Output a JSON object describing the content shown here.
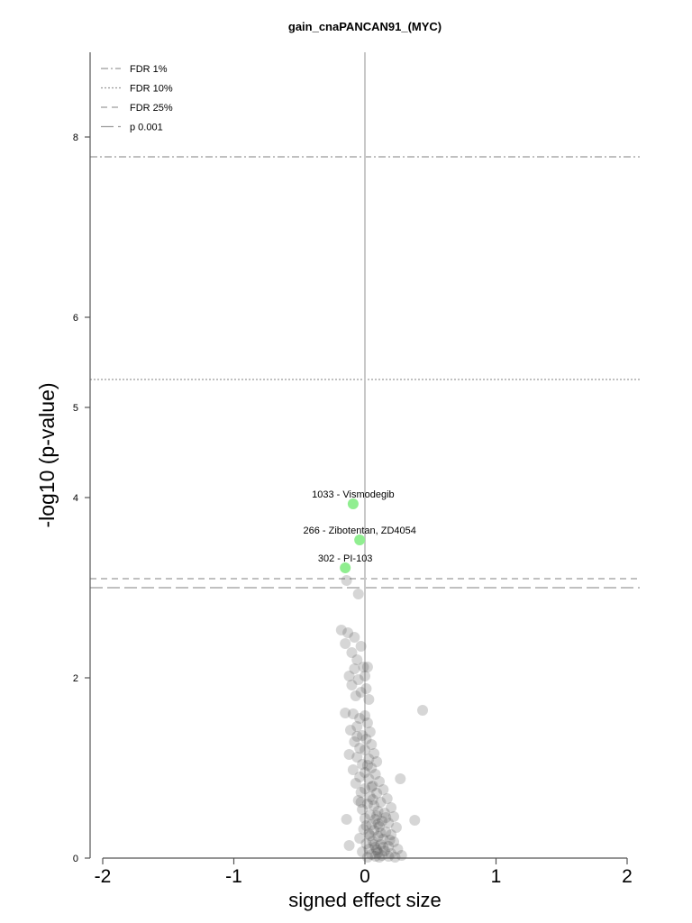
{
  "chart_data": {
    "type": "scatter",
    "title": "gain_cnaPANCAN91_(MYC)",
    "xlabel": "signed effect size",
    "ylabel": "-log10 (p-value)",
    "xlim": [
      -2.1,
      2.1
    ],
    "ylim": [
      0,
      8.9
    ],
    "xticks": [
      "-2",
      "-1",
      "0",
      "1",
      "2"
    ],
    "yticks": [
      "0",
      "2",
      "4",
      "5",
      "6",
      "8"
    ],
    "grid": false,
    "legend_position": "top-left",
    "threshold_lines": [
      {
        "label": "FDR 1%",
        "y": 7.78,
        "style": "dashdot"
      },
      {
        "label": "FDR 10%",
        "y": 5.31,
        "style": "dotted"
      },
      {
        "label": "FDR 25%",
        "y": 3.1,
        "style": "dashed"
      },
      {
        "label": "p 0.001",
        "y": 3.0,
        "style": "longdash"
      }
    ],
    "highlighted": [
      {
        "label": "1033 - Vismodegib",
        "x": -0.09,
        "y": 3.93,
        "color": "#90ee90"
      },
      {
        "label": "266 - Zibotentan, ZD4054",
        "x": -0.04,
        "y": 3.53,
        "color": "#90ee90"
      },
      {
        "label": "302 - PI-103",
        "x": -0.15,
        "y": 3.22,
        "color": "#90ee90"
      }
    ],
    "points": [
      {
        "x": -0.14,
        "y": 3.08
      },
      {
        "x": -0.05,
        "y": 2.93
      },
      {
        "x": -0.18,
        "y": 2.53
      },
      {
        "x": -0.13,
        "y": 2.5
      },
      {
        "x": -0.08,
        "y": 2.45
      },
      {
        "x": -0.15,
        "y": 2.38
      },
      {
        "x": -0.03,
        "y": 2.35
      },
      {
        "x": -0.1,
        "y": 2.28
      },
      {
        "x": -0.06,
        "y": 2.2
      },
      {
        "x": -0.01,
        "y": 2.12
      },
      {
        "x": -0.08,
        "y": 2.1
      },
      {
        "x": 0.02,
        "y": 2.12
      },
      {
        "x": -0.12,
        "y": 2.02
      },
      {
        "x": 0.0,
        "y": 2.02
      },
      {
        "x": -0.05,
        "y": 1.98
      },
      {
        "x": -0.1,
        "y": 1.92
      },
      {
        "x": 0.01,
        "y": 1.88
      },
      {
        "x": -0.03,
        "y": 1.84
      },
      {
        "x": -0.07,
        "y": 1.8
      },
      {
        "x": 0.03,
        "y": 1.76
      },
      {
        "x": 0.44,
        "y": 1.64
      },
      {
        "x": -0.15,
        "y": 1.61
      },
      {
        "x": -0.09,
        "y": 1.6
      },
      {
        "x": 0.0,
        "y": 1.58
      },
      {
        "x": -0.04,
        "y": 1.55
      },
      {
        "x": 0.02,
        "y": 1.5
      },
      {
        "x": -0.06,
        "y": 1.46
      },
      {
        "x": -0.11,
        "y": 1.42
      },
      {
        "x": 0.04,
        "y": 1.4
      },
      {
        "x": -0.02,
        "y": 1.36
      },
      {
        "x": 0.01,
        "y": 1.32
      },
      {
        "x": -0.08,
        "y": 1.29
      },
      {
        "x": 0.05,
        "y": 1.26
      },
      {
        "x": -0.04,
        "y": 1.22
      },
      {
        "x": 0.0,
        "y": 1.2
      },
      {
        "x": 0.07,
        "y": 1.16
      },
      {
        "x": -0.12,
        "y": 1.15
      },
      {
        "x": -0.06,
        "y": 1.12
      },
      {
        "x": 0.03,
        "y": 1.1
      },
      {
        "x": 0.09,
        "y": 1.07
      },
      {
        "x": -0.02,
        "y": 1.04
      },
      {
        "x": 0.05,
        "y": 1.0
      },
      {
        "x": -0.09,
        "y": 0.98
      },
      {
        "x": 0.0,
        "y": 0.95
      },
      {
        "x": 0.08,
        "y": 0.93
      },
      {
        "x": -0.04,
        "y": 0.9
      },
      {
        "x": 0.03,
        "y": 0.88
      },
      {
        "x": 0.27,
        "y": 0.88
      },
      {
        "x": 0.11,
        "y": 0.85
      },
      {
        "x": -0.07,
        "y": 0.83
      },
      {
        "x": 0.06,
        "y": 0.8
      },
      {
        "x": 0.0,
        "y": 0.77
      },
      {
        "x": 0.14,
        "y": 0.76
      },
      {
        "x": -0.03,
        "y": 0.73
      },
      {
        "x": 0.09,
        "y": 0.72
      },
      {
        "x": 0.04,
        "y": 0.68
      },
      {
        "x": 0.17,
        "y": 0.66
      },
      {
        "x": -0.05,
        "y": 0.64
      },
      {
        "x": 0.12,
        "y": 0.62
      },
      {
        "x": 0.02,
        "y": 0.6
      },
      {
        "x": 0.07,
        "y": 0.58
      },
      {
        "x": 0.2,
        "y": 0.56
      },
      {
        "x": -0.02,
        "y": 0.54
      },
      {
        "x": 0.1,
        "y": 0.52
      },
      {
        "x": 0.15,
        "y": 0.5
      },
      {
        "x": 0.04,
        "y": 0.48
      },
      {
        "x": 0.22,
        "y": 0.46
      },
      {
        "x": 0.0,
        "y": 0.44
      },
      {
        "x": 0.08,
        "y": 0.43
      },
      {
        "x": -0.14,
        "y": 0.43
      },
      {
        "x": 0.13,
        "y": 0.41
      },
      {
        "x": 0.18,
        "y": 0.39
      },
      {
        "x": 0.05,
        "y": 0.37
      },
      {
        "x": 0.38,
        "y": 0.42
      },
      {
        "x": 0.11,
        "y": 0.35
      },
      {
        "x": 0.24,
        "y": 0.34
      },
      {
        "x": -0.01,
        "y": 0.32
      },
      {
        "x": 0.07,
        "y": 0.31
      },
      {
        "x": 0.16,
        "y": 0.29
      },
      {
        "x": 0.03,
        "y": 0.27
      },
      {
        "x": 0.2,
        "y": 0.26
      },
      {
        "x": 0.1,
        "y": 0.24
      },
      {
        "x": -0.04,
        "y": 0.22
      },
      {
        "x": 0.14,
        "y": 0.21
      },
      {
        "x": 0.06,
        "y": 0.19
      },
      {
        "x": 0.22,
        "y": 0.18
      },
      {
        "x": 0.01,
        "y": 0.16
      },
      {
        "x": 0.12,
        "y": 0.15
      },
      {
        "x": 0.18,
        "y": 0.13
      },
      {
        "x": -0.12,
        "y": 0.14
      },
      {
        "x": 0.08,
        "y": 0.12
      },
      {
        "x": 0.03,
        "y": 0.1
      },
      {
        "x": 0.25,
        "y": 0.1
      },
      {
        "x": 0.15,
        "y": 0.08
      },
      {
        "x": 0.1,
        "y": 0.06
      },
      {
        "x": -0.02,
        "y": 0.07
      },
      {
        "x": 0.2,
        "y": 0.05
      },
      {
        "x": 0.05,
        "y": 0.04
      },
      {
        "x": 0.13,
        "y": 0.03
      },
      {
        "x": 0.28,
        "y": 0.03
      },
      {
        "x": 0.08,
        "y": 0.02
      },
      {
        "x": 0.18,
        "y": 0.02
      },
      {
        "x": 0.02,
        "y": 0.01
      },
      {
        "x": 0.11,
        "y": 0.01
      },
      {
        "x": 0.23,
        "y": 0.01
      },
      {
        "x": 0.06,
        "y": 0.65
      },
      {
        "x": 0.09,
        "y": 0.47
      },
      {
        "x": 0.04,
        "y": 0.25
      },
      {
        "x": 0.12,
        "y": 0.28
      },
      {
        "x": 0.07,
        "y": 0.15
      },
      {
        "x": 0.16,
        "y": 0.45
      },
      {
        "x": 0.01,
        "y": 0.36
      },
      {
        "x": 0.09,
        "y": 0.09
      },
      {
        "x": 0.19,
        "y": 0.2
      },
      {
        "x": -0.06,
        "y": 1.35
      },
      {
        "x": 0.02,
        "y": 1.03
      },
      {
        "x": -0.03,
        "y": 0.62
      },
      {
        "x": 0.05,
        "y": 0.79
      },
      {
        "x": 0.1,
        "y": 0.38
      },
      {
        "x": 0.14,
        "y": 0.12
      }
    ]
  }
}
